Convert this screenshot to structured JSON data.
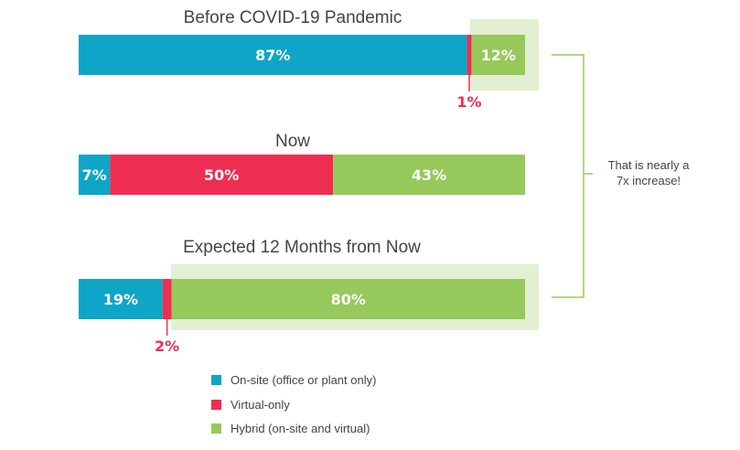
{
  "chart_data": {
    "type": "bar",
    "orientation": "horizontal",
    "stacked": true,
    "panels": [
      {
        "title": "Before COVID-19 Pandemic",
        "values": [
          87,
          1,
          12
        ],
        "labels": [
          "87%",
          "1%",
          "12%"
        ]
      },
      {
        "title": "Now",
        "values": [
          7,
          50,
          43
        ],
        "labels": [
          "7%",
          "50%",
          "43%"
        ]
      },
      {
        "title": "Expected 12 Months from Now",
        "values": [
          19,
          2,
          80
        ],
        "labels": [
          "19%",
          "2%",
          "80%"
        ]
      }
    ],
    "series": [
      {
        "name": "On-site (office or plant only)",
        "color": "#0ea5c6"
      },
      {
        "name": "Virtual-only",
        "color": "#ee2e52"
      },
      {
        "name": "Hybrid (on-site and virtual)",
        "color": "#97c85b"
      }
    ],
    "highlight_color": "#e3efd2",
    "annotation": {
      "line1": "That is nearly a",
      "line2": "7x increase!"
    },
    "legend_position": "bottom"
  }
}
